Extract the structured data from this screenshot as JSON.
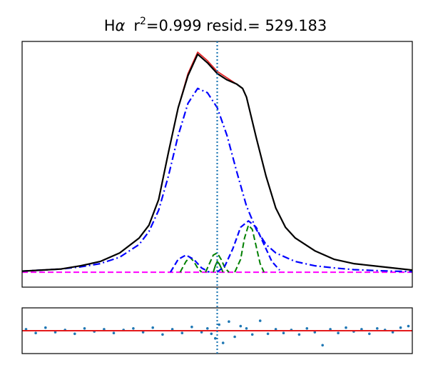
{
  "figure": {
    "title_prefix": "H",
    "title_alpha": "α",
    "title_r": "r",
    "title_sup": "2",
    "title_rest": "=0.999 resid.= 529.183"
  },
  "colors": {
    "data": "#e41a1c",
    "model": "#000000",
    "broad": "#0000ff",
    "narrow": "#008000",
    "cont": "#ff00ff",
    "center_line": "#1f77b4",
    "resid_points": "#1f77b4",
    "resid_zero": "#e41a1c"
  },
  "chart_data": [
    {
      "type": "line",
      "panel": "main",
      "grid": false,
      "xlim": [
        -1,
        1
      ],
      "ylim": [
        -0.07,
        1.08
      ],
      "center_x": 0.0,
      "series": [
        {
          "role": "data",
          "style": "solid",
          "x": [
            -1.0,
            -0.9,
            -0.8,
            -0.7,
            -0.6,
            -0.5,
            -0.4,
            -0.35,
            -0.3,
            -0.25,
            -0.2,
            -0.15,
            -0.1,
            -0.05,
            0.0,
            0.05,
            0.1,
            0.13,
            0.15,
            0.2,
            0.25,
            0.3,
            0.35,
            0.4,
            0.5,
            0.6,
            0.7,
            0.8,
            0.9,
            1.0
          ],
          "y": [
            0.005,
            0.01,
            0.015,
            0.03,
            0.05,
            0.09,
            0.16,
            0.22,
            0.34,
            0.56,
            0.77,
            0.93,
            1.03,
            0.99,
            0.94,
            0.91,
            0.88,
            0.86,
            0.82,
            0.63,
            0.45,
            0.3,
            0.21,
            0.16,
            0.1,
            0.06,
            0.04,
            0.03,
            0.02,
            0.01
          ]
        },
        {
          "role": "model",
          "style": "solid",
          "x": [
            -1.0,
            -0.9,
            -0.8,
            -0.7,
            -0.6,
            -0.5,
            -0.4,
            -0.35,
            -0.3,
            -0.25,
            -0.2,
            -0.15,
            -0.1,
            -0.05,
            0.0,
            0.05,
            0.1,
            0.13,
            0.15,
            0.2,
            0.25,
            0.3,
            0.35,
            0.4,
            0.5,
            0.6,
            0.7,
            0.8,
            0.9,
            1.0
          ],
          "y": [
            0.005,
            0.01,
            0.015,
            0.03,
            0.05,
            0.09,
            0.16,
            0.22,
            0.34,
            0.56,
            0.77,
            0.92,
            1.02,
            0.98,
            0.93,
            0.9,
            0.88,
            0.86,
            0.82,
            0.63,
            0.45,
            0.3,
            0.21,
            0.16,
            0.1,
            0.06,
            0.04,
            0.03,
            0.02,
            0.01
          ]
        },
        {
          "role": "broad",
          "style": "dashdot",
          "x": [
            -1.0,
            -0.9,
            -0.8,
            -0.7,
            -0.6,
            -0.5,
            -0.4,
            -0.35,
            -0.3,
            -0.25,
            -0.2,
            -0.15,
            -0.1,
            -0.05,
            0.0,
            0.05,
            0.1,
            0.15,
            0.2,
            0.25,
            0.3,
            0.35,
            0.4,
            0.5,
            0.6,
            0.7,
            0.8,
            0.9,
            1.0
          ],
          "y": [
            0.005,
            0.01,
            0.015,
            0.025,
            0.04,
            0.07,
            0.13,
            0.19,
            0.29,
            0.45,
            0.64,
            0.79,
            0.86,
            0.84,
            0.77,
            0.64,
            0.47,
            0.31,
            0.2,
            0.13,
            0.09,
            0.07,
            0.05,
            0.03,
            0.02,
            0.012,
            0.008,
            0.005,
            0.003
          ]
        },
        {
          "role": "broad",
          "style": "dashed",
          "x": [
            -0.24,
            -0.2,
            -0.16,
            -0.12,
            -0.08,
            -0.04
          ],
          "y": [
            0.0,
            0.06,
            0.08,
            0.06,
            0.02,
            0.0
          ]
        },
        {
          "role": "broad",
          "style": "dashed",
          "x": [
            0.0,
            0.04,
            0.08,
            0.12,
            0.16,
            0.2,
            0.24,
            0.28,
            0.32
          ],
          "y": [
            0.0,
            0.03,
            0.11,
            0.21,
            0.24,
            0.21,
            0.13,
            0.05,
            0.01
          ]
        },
        {
          "role": "narrow",
          "style": "dashed",
          "x": [
            -0.19,
            -0.16,
            -0.14,
            -0.12,
            -0.1,
            -0.08
          ],
          "y": [
            0.0,
            0.05,
            0.07,
            0.05,
            0.02,
            0.0
          ]
        },
        {
          "role": "narrow",
          "style": "dashed",
          "x": [
            -0.06,
            -0.04,
            -0.02,
            0.0,
            0.02,
            0.04,
            0.06
          ],
          "y": [
            0.0,
            0.04,
            0.08,
            0.09,
            0.06,
            0.02,
            0.0
          ]
        },
        {
          "role": "narrow",
          "style": "dashed",
          "x": [
            0.09,
            0.12,
            0.14,
            0.16,
            0.18,
            0.2,
            0.22,
            0.24
          ],
          "y": [
            0.0,
            0.06,
            0.16,
            0.22,
            0.2,
            0.12,
            0.04,
            0.0
          ]
        },
        {
          "role": "narrow",
          "style": "solid",
          "x": [
            -0.02,
            -0.01,
            0.0,
            0.01,
            0.02,
            0.03
          ],
          "y": [
            0.0,
            0.03,
            0.05,
            0.04,
            0.02,
            0.0
          ]
        },
        {
          "role": "cont",
          "style": "dashed",
          "x": [
            -1.0,
            -0.5,
            0.0,
            0.5,
            1.0
          ],
          "y": [
            0.0,
            0.0,
            0.0,
            0.0,
            0.0
          ]
        }
      ]
    },
    {
      "type": "scatter",
      "panel": "residual",
      "grid": false,
      "xlim": [
        -1,
        1
      ],
      "ylim": [
        -3,
        3
      ],
      "zero_line": 0.0,
      "x": [
        -0.98,
        -0.93,
        -0.88,
        -0.83,
        -0.78,
        -0.73,
        -0.68,
        -0.63,
        -0.58,
        -0.53,
        -0.48,
        -0.43,
        -0.38,
        -0.33,
        -0.28,
        -0.23,
        -0.18,
        -0.13,
        -0.08,
        -0.05,
        -0.03,
        -0.01,
        0.01,
        0.03,
        0.06,
        0.09,
        0.12,
        0.15,
        0.18,
        0.22,
        0.26,
        0.3,
        0.34,
        0.38,
        0.42,
        0.46,
        0.5,
        0.54,
        0.58,
        0.62,
        0.66,
        0.7,
        0.74,
        0.78,
        0.82,
        0.86,
        0.9,
        0.94,
        0.98
      ],
      "y": [
        0.2,
        -0.3,
        0.4,
        -0.2,
        0.1,
        -0.4,
        0.3,
        -0.1,
        0.2,
        -0.3,
        0.1,
        0.3,
        -0.2,
        0.4,
        -0.5,
        0.2,
        -0.3,
        0.5,
        -0.2,
        0.3,
        -0.4,
        -1.0,
        0.8,
        -1.6,
        1.2,
        -0.8,
        0.6,
        0.3,
        -0.5,
        1.3,
        -0.4,
        0.2,
        -0.3,
        0.1,
        -0.5,
        0.3,
        -0.2,
        -1.9,
        0.2,
        -0.3,
        0.4,
        -0.1,
        0.2,
        -0.4,
        0.3,
        0.1,
        -0.2,
        0.4,
        0.6
      ]
    }
  ]
}
